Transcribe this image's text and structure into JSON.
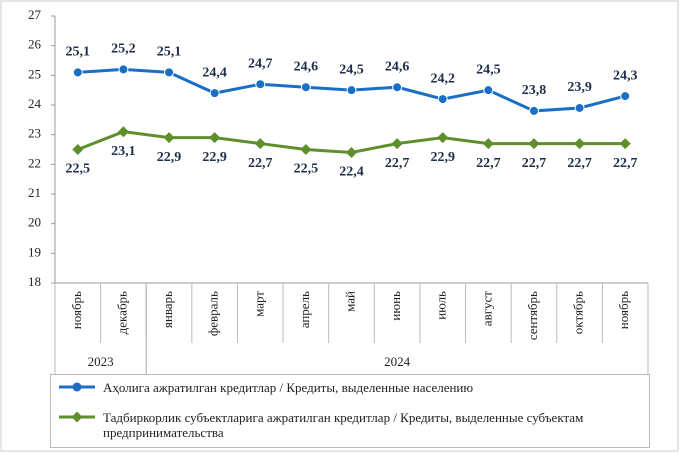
{
  "chart_data": {
    "type": "line",
    "categories": [
      "ноябрь",
      "декабрь",
      "январь",
      "февраль",
      "март",
      "апрель",
      "май",
      "июнь",
      "июль",
      "август",
      "сентябрь",
      "октябрь",
      "ноябрь"
    ],
    "x_groups": [
      {
        "label": "2023",
        "span": 2
      },
      {
        "label": "2024",
        "span": 11
      }
    ],
    "series": [
      {
        "name": "Аҳолига ажратилган кредитлар / Кредиты, выделенные населению",
        "color": "#1a6fc4",
        "label_position": "above",
        "values": [
          25.1,
          25.2,
          25.1,
          24.4,
          24.7,
          24.6,
          24.5,
          24.6,
          24.2,
          24.5,
          23.8,
          23.9,
          24.3
        ],
        "value_labels": [
          "25,1",
          "25,2",
          "25,1",
          "24,4",
          "24,7",
          "24,6",
          "24,5",
          "24,6",
          "24,2",
          "24,5",
          "23,8",
          "23,9",
          "24,3"
        ]
      },
      {
        "name": "Тадбиркорлик субъектларига ажратилган кредитлар / Кредиты, выделенные субъектам предпринимательства",
        "color": "#5e8f2c",
        "label_position": "below",
        "values": [
          22.5,
          23.1,
          22.9,
          22.9,
          22.7,
          22.5,
          22.4,
          22.7,
          22.9,
          22.7,
          22.7,
          22.7,
          22.7
        ],
        "value_labels": [
          "22,5",
          "23,1",
          "22,9",
          "22,9",
          "22,7",
          "22,5",
          "22,4",
          "22,7",
          "22,9",
          "22,7",
          "22,7",
          "22,7",
          "22,7"
        ]
      }
    ],
    "ylim": [
      18,
      27
    ],
    "yticks": [
      18,
      19,
      20,
      21,
      22,
      23,
      24,
      25,
      26,
      27
    ],
    "grid": false
  }
}
